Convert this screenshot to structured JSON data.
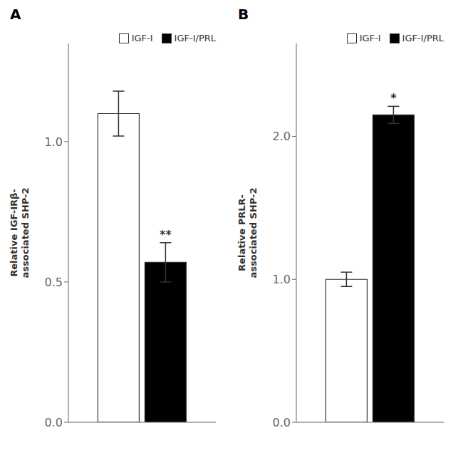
{
  "chart_data": [
    {
      "type": "bar",
      "title": "A",
      "categories": [
        null
      ],
      "series": [
        {
          "name": "IGF-I",
          "color": "white",
          "values": [
            1.1
          ],
          "errors": [
            0.08
          ]
        },
        {
          "name": "IGF-I/PRL",
          "color": "black",
          "values": [
            0.57
          ],
          "errors": [
            0.07
          ]
        }
      ],
      "ylabel": "Relative IGF-IRβ-\nassociated SHP-2",
      "ylim": [
        0.0,
        1.35
      ],
      "yticks": [
        {
          "value": 0.0,
          "label": "0.0"
        },
        {
          "value": 0.5,
          "label": "0.5"
        },
        {
          "value": 1.0,
          "label": "1.0"
        }
      ],
      "grid": false,
      "legend": "top",
      "tick_labels": "y",
      "annotations": [
        {
          "text": "**",
          "series": "IGF-I/PRL"
        }
      ]
    },
    {
      "type": "bar",
      "title": "B",
      "categories": [
        null
      ],
      "series": [
        {
          "name": "IGF-I",
          "color": "white",
          "values": [
            1.0
          ],
          "errors": [
            0.05
          ]
        },
        {
          "name": "IGF-I/PRL",
          "color": "black",
          "values": [
            2.15
          ],
          "errors": [
            0.06
          ]
        }
      ],
      "ylabel": "Relative PRLR-\nassociated SHP-2",
      "ylim": [
        0.0,
        2.65
      ],
      "yticks": [
        {
          "value": 0.0,
          "label": "0.0"
        },
        {
          "value": 1.0,
          "label": "1.0"
        },
        {
          "value": 2.0,
          "label": "2.0"
        }
      ],
      "grid": false,
      "legend": "top",
      "tick_labels": "y",
      "annotations": [
        {
          "text": "*",
          "series": "IGF-I/PRL"
        }
      ]
    }
  ]
}
